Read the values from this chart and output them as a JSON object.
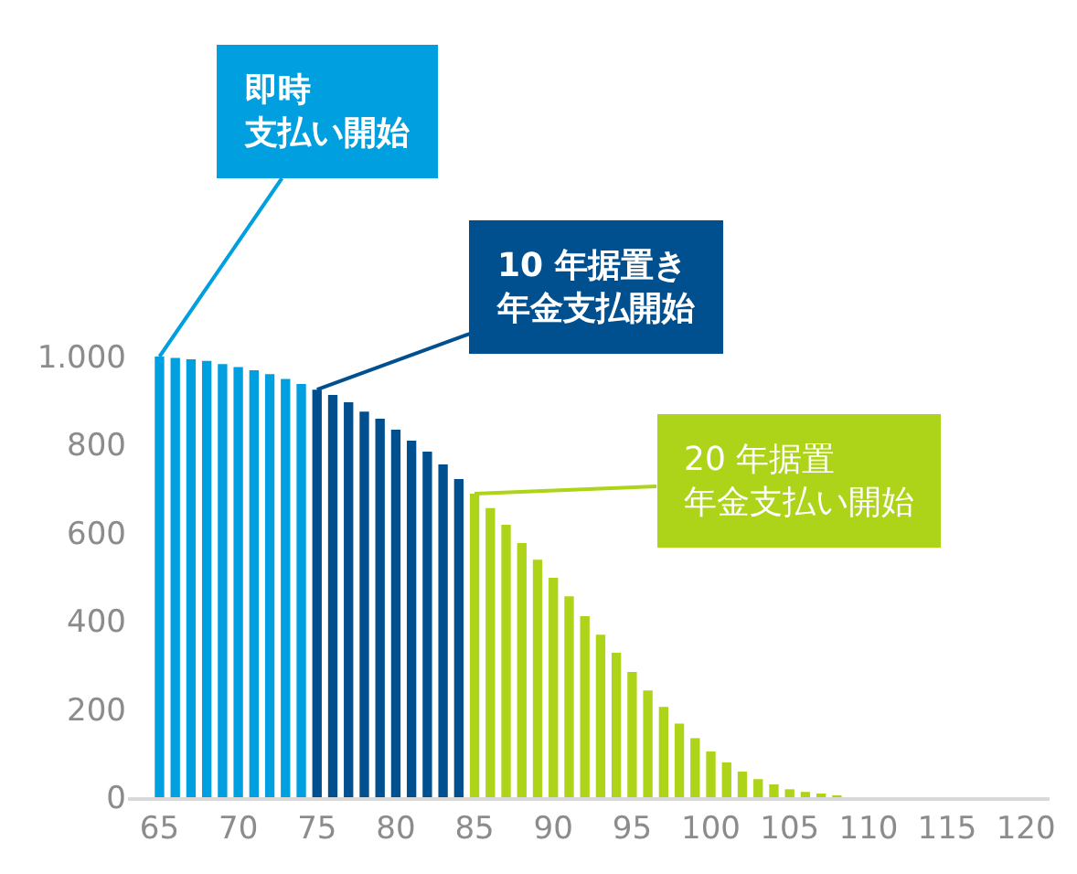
{
  "chart_data": {
    "type": "bar",
    "series": [
      {
        "color": "#009fdf",
        "x": [
          65,
          66,
          67,
          68,
          69,
          70,
          71,
          72,
          73,
          74
        ],
        "values": [
          1000,
          997,
          994,
          990,
          983,
          976,
          969,
          960,
          949,
          938
        ]
      },
      {
        "color": "#00508f",
        "x": [
          75,
          76,
          77,
          78,
          79,
          80,
          81,
          82,
          83,
          84
        ],
        "values": [
          925,
          913,
          896,
          875,
          859,
          834,
          809,
          784,
          755,
          722
        ]
      },
      {
        "color": "#add419",
        "x": [
          85,
          86,
          87,
          88,
          89,
          90,
          91,
          92,
          93,
          94,
          95,
          96,
          97,
          98,
          99,
          100,
          101,
          102,
          103,
          104,
          105,
          106,
          107,
          108
        ],
        "values": [
          689,
          656,
          618,
          577,
          539,
          498,
          456,
          411,
          369,
          328,
          284,
          242,
          205,
          167,
          134,
          104,
          79,
          58,
          41,
          29,
          18,
          12,
          8,
          4
        ]
      }
    ],
    "xlim": [
      63,
      121.5
    ],
    "xticks": [
      65,
      70,
      75,
      80,
      85,
      90,
      95,
      100,
      105,
      110,
      115,
      120
    ],
    "ylim": [
      0,
      1000
    ],
    "yticks": [
      0,
      200,
      400,
      600,
      800,
      {
        "value": 1000,
        "label": "1.000"
      }
    ],
    "annotations": [
      {
        "text": "即時支払い開始",
        "x": 65,
        "y": 1000
      },
      {
        "text": "10 年据置き年金支払開始",
        "x": 75,
        "y": 925
      },
      {
        "text": "20 年据置年金支払い開始",
        "x": 85,
        "y": 689
      }
    ]
  }
}
